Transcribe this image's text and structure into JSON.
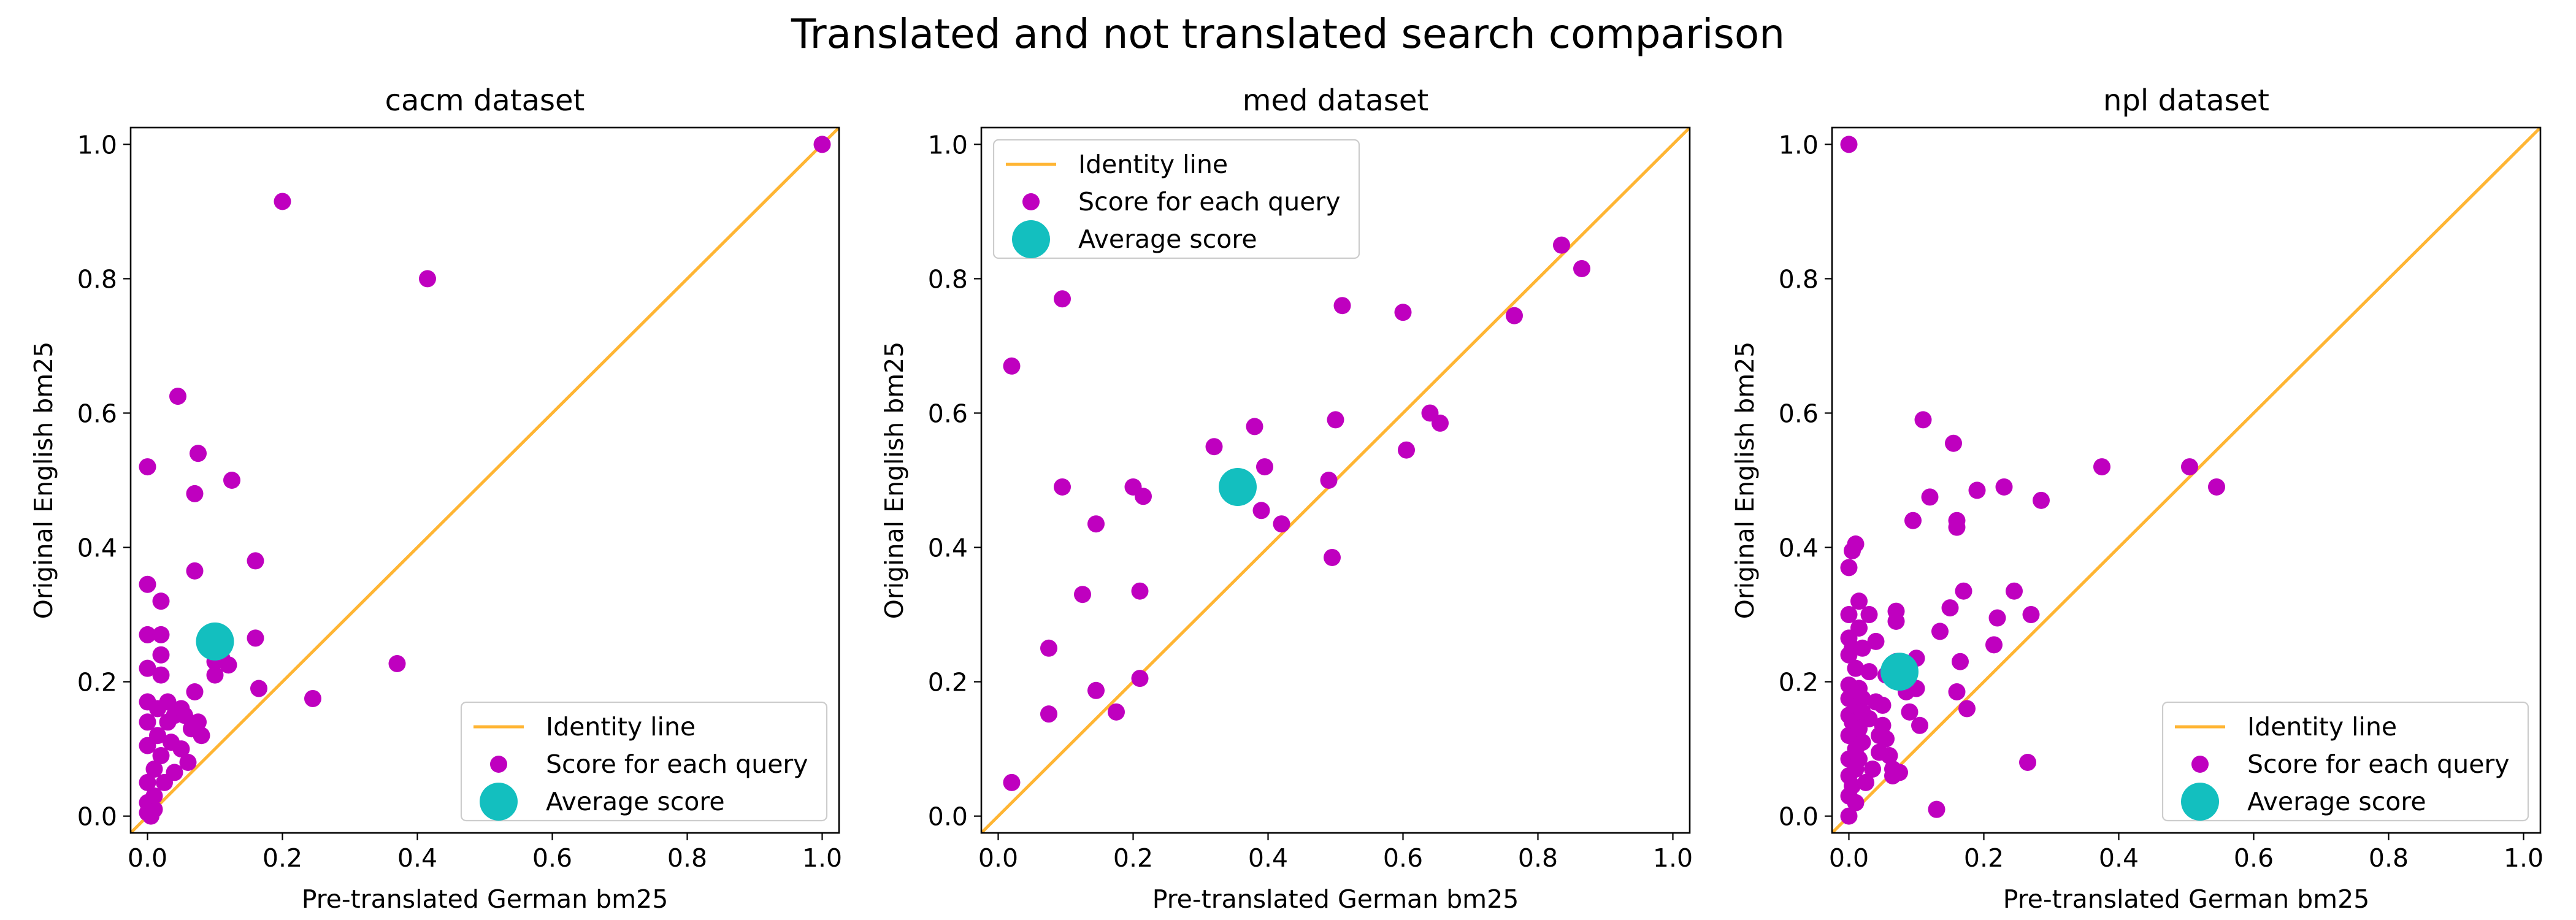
{
  "figure_title": "Translated and not translated search comparison",
  "colors": {
    "identity": "#FFB533",
    "query": "#BF00BF",
    "average": "#13BFBF"
  },
  "chart_data": [
    {
      "type": "scatter",
      "title": "cacm dataset",
      "xlabel": "Pre-translated German bm25",
      "ylabel": "Original English bm25",
      "xlim": [
        -0.025,
        1.025
      ],
      "ylim": [
        -0.025,
        1.025
      ],
      "xticks": [
        "0.0",
        "0.2",
        "0.4",
        "0.6",
        "0.8",
        "1.0"
      ],
      "yticks": [
        "0.0",
        "0.2",
        "0.4",
        "0.6",
        "0.8",
        "1.0"
      ],
      "legend_position": "bottom-right",
      "legend": [
        "Identity line",
        "Score for each query",
        "Average score"
      ],
      "identity_line": [
        [
          -0.025,
          -0.025
        ],
        [
          1.025,
          1.025
        ]
      ],
      "points": [
        [
          0.0,
          0.52
        ],
        [
          0.0,
          0.345
        ],
        [
          0.0,
          0.27
        ],
        [
          0.0,
          0.22
        ],
        [
          0.0,
          0.17
        ],
        [
          0.0,
          0.14
        ],
        [
          0.0,
          0.105
        ],
        [
          0.0,
          0.05
        ],
        [
          0.0,
          0.02
        ],
        [
          0.0,
          0.005
        ],
        [
          0.005,
          0.0
        ],
        [
          0.01,
          0.01
        ],
        [
          0.01,
          0.03
        ],
        [
          0.01,
          0.07
        ],
        [
          0.015,
          0.12
        ],
        [
          0.015,
          0.16
        ],
        [
          0.02,
          0.21
        ],
        [
          0.02,
          0.24
        ],
        [
          0.02,
          0.27
        ],
        [
          0.02,
          0.32
        ],
        [
          0.02,
          0.09
        ],
        [
          0.025,
          0.05
        ],
        [
          0.03,
          0.14
        ],
        [
          0.03,
          0.17
        ],
        [
          0.035,
          0.11
        ],
        [
          0.04,
          0.065
        ],
        [
          0.04,
          0.15
        ],
        [
          0.045,
          0.625
        ],
        [
          0.05,
          0.1
        ],
        [
          0.05,
          0.16
        ],
        [
          0.055,
          0.15
        ],
        [
          0.06,
          0.08
        ],
        [
          0.065,
          0.13
        ],
        [
          0.07,
          0.48
        ],
        [
          0.07,
          0.365
        ],
        [
          0.07,
          0.185
        ],
        [
          0.075,
          0.54
        ],
        [
          0.075,
          0.14
        ],
        [
          0.08,
          0.12
        ],
        [
          0.1,
          0.23
        ],
        [
          0.1,
          0.21
        ],
        [
          0.11,
          0.235
        ],
        [
          0.12,
          0.225
        ],
        [
          0.125,
          0.5
        ],
        [
          0.16,
          0.38
        ],
        [
          0.16,
          0.265
        ],
        [
          0.165,
          0.19
        ],
        [
          0.2,
          0.915
        ],
        [
          0.245,
          0.175
        ],
        [
          0.37,
          0.227
        ],
        [
          0.415,
          0.8
        ],
        [
          1.0,
          1.0
        ]
      ],
      "average": [
        0.1,
        0.26
      ]
    },
    {
      "type": "scatter",
      "title": "med dataset",
      "xlabel": "Pre-translated German bm25",
      "ylabel": "Original English bm25",
      "xlim": [
        -0.025,
        1.025
      ],
      "ylim": [
        -0.025,
        1.025
      ],
      "xticks": [
        "0.0",
        "0.2",
        "0.4",
        "0.6",
        "0.8",
        "1.0"
      ],
      "yticks": [
        "0.0",
        "0.2",
        "0.4",
        "0.6",
        "0.8",
        "1.0"
      ],
      "legend_position": "top-left",
      "legend": [
        "Identity line",
        "Score for each query",
        "Average score"
      ],
      "identity_line": [
        [
          -0.025,
          -0.025
        ],
        [
          1.025,
          1.025
        ]
      ],
      "points": [
        [
          0.02,
          0.67
        ],
        [
          0.02,
          0.05
        ],
        [
          0.075,
          0.25
        ],
        [
          0.075,
          0.152
        ],
        [
          0.095,
          0.77
        ],
        [
          0.095,
          0.49
        ],
        [
          0.125,
          0.33
        ],
        [
          0.145,
          0.435
        ],
        [
          0.145,
          0.187
        ],
        [
          0.175,
          0.155
        ],
        [
          0.2,
          0.49
        ],
        [
          0.21,
          0.335
        ],
        [
          0.21,
          0.205
        ],
        [
          0.215,
          0.476
        ],
        [
          0.32,
          0.55
        ],
        [
          0.38,
          0.58
        ],
        [
          0.39,
          0.455
        ],
        [
          0.395,
          0.52
        ],
        [
          0.42,
          0.435
        ],
        [
          0.49,
          0.5
        ],
        [
          0.495,
          0.385
        ],
        [
          0.5,
          0.59
        ],
        [
          0.51,
          0.76
        ],
        [
          0.6,
          0.75
        ],
        [
          0.605,
          0.545
        ],
        [
          0.64,
          0.6
        ],
        [
          0.655,
          0.585
        ],
        [
          0.765,
          0.745
        ],
        [
          0.835,
          0.85
        ],
        [
          0.865,
          0.815
        ]
      ],
      "average": [
        0.355,
        0.49
      ]
    },
    {
      "type": "scatter",
      "title": "npl dataset",
      "xlabel": "Pre-translated German bm25",
      "ylabel": "Original English bm25",
      "xlim": [
        -0.025,
        1.025
      ],
      "ylim": [
        -0.025,
        1.025
      ],
      "xticks": [
        "0.0",
        "0.2",
        "0.4",
        "0.6",
        "0.8",
        "1.0"
      ],
      "yticks": [
        "0.0",
        "0.2",
        "0.4",
        "0.6",
        "0.8",
        "1.0"
      ],
      "legend_position": "bottom-right",
      "legend": [
        "Identity line",
        "Score for each query",
        "Average score"
      ],
      "identity_line": [
        [
          -0.025,
          -0.025
        ],
        [
          1.025,
          1.025
        ]
      ],
      "points": [
        [
          0.0,
          1.0
        ],
        [
          0.0,
          0.37
        ],
        [
          0.0,
          0.3
        ],
        [
          0.0,
          0.265
        ],
        [
          0.0,
          0.24
        ],
        [
          0.0,
          0.195
        ],
        [
          0.0,
          0.175
        ],
        [
          0.0,
          0.15
        ],
        [
          0.0,
          0.12
        ],
        [
          0.0,
          0.085
        ],
        [
          0.0,
          0.06
        ],
        [
          0.0,
          0.03
        ],
        [
          0.0,
          0.0
        ],
        [
          0.005,
          0.395
        ],
        [
          0.005,
          0.25
        ],
        [
          0.005,
          0.14
        ],
        [
          0.005,
          0.045
        ],
        [
          0.01,
          0.405
        ],
        [
          0.01,
          0.22
        ],
        [
          0.01,
          0.165
        ],
        [
          0.01,
          0.1
        ],
        [
          0.01,
          0.07
        ],
        [
          0.01,
          0.02
        ],
        [
          0.015,
          0.32
        ],
        [
          0.015,
          0.28
        ],
        [
          0.015,
          0.19
        ],
        [
          0.015,
          0.13
        ],
        [
          0.015,
          0.085
        ],
        [
          0.02,
          0.25
        ],
        [
          0.02,
          0.175
        ],
        [
          0.02,
          0.155
        ],
        [
          0.02,
          0.11
        ],
        [
          0.025,
          0.05
        ],
        [
          0.03,
          0.3
        ],
        [
          0.03,
          0.215
        ],
        [
          0.03,
          0.145
        ],
        [
          0.035,
          0.07
        ],
        [
          0.04,
          0.26
        ],
        [
          0.04,
          0.17
        ],
        [
          0.045,
          0.12
        ],
        [
          0.045,
          0.095
        ],
        [
          0.05,
          0.165
        ],
        [
          0.05,
          0.135
        ],
        [
          0.055,
          0.21
        ],
        [
          0.055,
          0.115
        ],
        [
          0.06,
          0.09
        ],
        [
          0.065,
          0.07
        ],
        [
          0.065,
          0.06
        ],
        [
          0.07,
          0.305
        ],
        [
          0.07,
          0.29
        ],
        [
          0.07,
          0.23
        ],
        [
          0.075,
          0.2
        ],
        [
          0.075,
          0.065
        ],
        [
          0.085,
          0.185
        ],
        [
          0.09,
          0.155
        ],
        [
          0.095,
          0.44
        ],
        [
          0.1,
          0.235
        ],
        [
          0.1,
          0.19
        ],
        [
          0.105,
          0.135
        ],
        [
          0.11,
          0.59
        ],
        [
          0.12,
          0.475
        ],
        [
          0.13,
          0.01
        ],
        [
          0.135,
          0.275
        ],
        [
          0.15,
          0.31
        ],
        [
          0.155,
          0.555
        ],
        [
          0.16,
          0.44
        ],
        [
          0.16,
          0.43
        ],
        [
          0.16,
          0.185
        ],
        [
          0.165,
          0.23
        ],
        [
          0.17,
          0.335
        ],
        [
          0.175,
          0.16
        ],
        [
          0.19,
          0.485
        ],
        [
          0.215,
          0.255
        ],
        [
          0.22,
          0.295
        ],
        [
          0.23,
          0.49
        ],
        [
          0.245,
          0.335
        ],
        [
          0.265,
          0.08
        ],
        [
          0.27,
          0.3
        ],
        [
          0.285,
          0.47
        ],
        [
          0.375,
          0.52
        ],
        [
          0.505,
          0.52
        ],
        [
          0.545,
          0.49
        ]
      ],
      "average": [
        0.075,
        0.215
      ]
    }
  ]
}
